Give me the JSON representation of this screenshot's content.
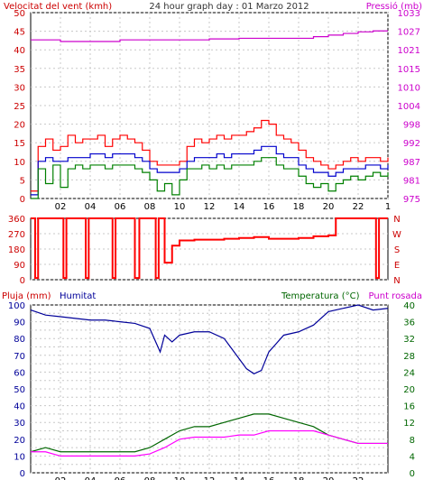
{
  "header": {
    "wind_title": "Velocitat del vent (kmh)",
    "center_title": "24 hour graph day : 01 Marzo 2012",
    "pressure_title": "Pressió (mb)"
  },
  "colors": {
    "wind_gust": "#ff0000",
    "wind_avg": "#0000cc",
    "wind_low": "#008000",
    "pressure": "#cc00cc",
    "direction": "#ff0000",
    "humidity": "#000099",
    "temperature": "#006600",
    "dewpoint": "#ff00ff",
    "axis_red": "#cc0000",
    "axis_magenta": "#cc00cc",
    "axis_green": "#006600",
    "axis_blue": "#000099",
    "grid": "#c8c8c8"
  },
  "chart_data": [
    {
      "type": "line",
      "name": "wind-pressure",
      "ylim": [
        0,
        50
      ],
      "y_ticks": [
        0,
        5,
        10,
        15,
        20,
        25,
        30,
        35,
        40,
        45,
        50
      ],
      "y2lim": [
        975,
        1033
      ],
      "y2_ticks": [
        975,
        981,
        987,
        992,
        998,
        1004,
        1010,
        1015,
        1021,
        1027,
        1033
      ],
      "x_ticks": [
        "02",
        "04",
        "06",
        "08",
        "10",
        "12",
        "14",
        "16",
        "18",
        "20",
        "22",
        "1"
      ],
      "series": [
        {
          "key": "gust",
          "x": [
            0,
            0.5,
            1,
            1.5,
            2,
            2.5,
            3,
            3.5,
            4,
            4.5,
            5,
            5.5,
            6,
            6.5,
            7,
            7.5,
            8,
            8.5,
            9,
            9.5,
            10,
            10.5,
            11,
            11.5,
            12,
            12.5,
            13,
            13.5,
            14,
            14.5,
            15,
            15.5,
            16,
            16.5,
            17,
            17.5,
            18,
            18.5,
            19,
            19.5,
            20,
            20.5,
            21,
            21.5,
            22,
            22.5,
            23,
            23.5,
            24
          ],
          "values": [
            2,
            14,
            16,
            13,
            14,
            17,
            15,
            16,
            16,
            17,
            14,
            16,
            17,
            16,
            15,
            13,
            10,
            9,
            9,
            9,
            10,
            14,
            16,
            15,
            16,
            17,
            16,
            17,
            17,
            18,
            19,
            21,
            20,
            17,
            16,
            15,
            13,
            11,
            10,
            9,
            8,
            9,
            10,
            11,
            10,
            11,
            11,
            10,
            11
          ]
        },
        {
          "key": "avg",
          "x": [
            0,
            0.5,
            1,
            1.5,
            2,
            2.5,
            3,
            3.5,
            4,
            4.5,
            5,
            5.5,
            6,
            6.5,
            7,
            7.5,
            8,
            8.5,
            9,
            9.5,
            10,
            10.5,
            11,
            11.5,
            12,
            12.5,
            13,
            13.5,
            14,
            14.5,
            15,
            15.5,
            16,
            16.5,
            17,
            17.5,
            18,
            18.5,
            19,
            19.5,
            20,
            20.5,
            21,
            21.5,
            22,
            22.5,
            23,
            23.5,
            24
          ],
          "values": [
            1,
            10,
            11,
            10,
            10,
            11,
            11,
            11,
            12,
            12,
            11,
            12,
            12,
            12,
            11,
            10,
            8,
            7,
            7,
            7,
            8,
            10,
            11,
            11,
            11,
            12,
            11,
            12,
            12,
            12,
            13,
            14,
            14,
            12,
            11,
            11,
            9,
            8,
            7,
            7,
            6,
            7,
            8,
            8,
            8,
            9,
            9,
            8,
            9
          ]
        },
        {
          "key": "low",
          "x": [
            0,
            0.5,
            1,
            1.5,
            2,
            2.5,
            3,
            3.5,
            4,
            4.5,
            5,
            5.5,
            6,
            6.5,
            7,
            7.5,
            8,
            8.5,
            9,
            9.5,
            10,
            10.5,
            11,
            11.5,
            12,
            12.5,
            13,
            13.5,
            14,
            14.5,
            15,
            15.5,
            16,
            16.5,
            17,
            17.5,
            18,
            18.5,
            19,
            19.5,
            20,
            20.5,
            21,
            21.5,
            22,
            22.5,
            23,
            23.5,
            24
          ],
          "values": [
            0,
            8,
            4,
            9,
            3,
            8,
            9,
            8,
            9,
            9,
            8,
            9,
            9,
            9,
            8,
            7,
            5,
            2,
            4,
            1,
            5,
            8,
            8,
            9,
            8,
            9,
            8,
            9,
            9,
            9,
            10,
            11,
            11,
            9,
            8,
            8,
            6,
            4,
            3,
            4,
            2,
            4,
            5,
            6,
            5,
            6,
            7,
            6,
            7
          ]
        },
        {
          "key": "pressure",
          "axis": "right",
          "x": [
            0,
            2,
            4,
            6,
            8,
            9,
            10,
            12,
            14,
            16,
            18,
            19,
            20,
            21,
            22,
            23,
            24
          ],
          "values": [
            1024.5,
            1024,
            1024,
            1024.5,
            1024.5,
            1024.5,
            1024.5,
            1024.8,
            1025,
            1025,
            1025,
            1025.5,
            1026,
            1026.5,
            1027,
            1027.3,
            1027.3
          ]
        }
      ]
    },
    {
      "type": "line",
      "name": "wind-direction",
      "ylim": [
        0,
        360
      ],
      "y_ticks": [
        0,
        90,
        180,
        270,
        360
      ],
      "y_tick_labels": [
        "0",
        "90",
        "180",
        "270",
        "360"
      ],
      "y2_tick_labels": [
        "N",
        "E",
        "S",
        "W",
        "N"
      ],
      "x": [
        0,
        0.3,
        0.5,
        2.2,
        2.4,
        3.7,
        3.9,
        5.5,
        5.7,
        7,
        7.3,
        8.4,
        8.6,
        9,
        9.5,
        10,
        11,
        12,
        13,
        14,
        15,
        16,
        17,
        18,
        19,
        20,
        20.5,
        22,
        23.2,
        23.4,
        24
      ],
      "values": [
        360,
        10,
        360,
        10,
        360,
        10,
        360,
        10,
        360,
        10,
        360,
        10,
        360,
        100,
        200,
        230,
        235,
        235,
        240,
        245,
        250,
        240,
        240,
        245,
        255,
        260,
        360,
        360,
        10,
        360,
        360
      ]
    },
    {
      "type": "line",
      "name": "humidity-temperature",
      "y_left_title": "Pluja (mm)",
      "y_left2_title": "Humitat",
      "y_right_title": "Temperatura (°C)",
      "y_right2_title": "Punt rosada",
      "ylim": [
        0,
        40
      ],
      "y_ticks": [
        0,
        2,
        4,
        6,
        8,
        10,
        12,
        14,
        16,
        18,
        20,
        22,
        24,
        26,
        28,
        30,
        32,
        34,
        36,
        38,
        40
      ],
      "y_tick_labels": [
        "0",
        "10",
        "20",
        "30",
        "40",
        "50",
        "60",
        "70",
        "80",
        "90",
        "100"
      ],
      "y_label_ticks": [
        0,
        4,
        8,
        12,
        16,
        20,
        24,
        28,
        32,
        36,
        40
      ],
      "y_right_labels": [
        "0",
        "4",
        "8",
        "12",
        "16",
        "20",
        "24",
        "28",
        "32",
        "36",
        "40"
      ],
      "x_ticks": [
        "02",
        "04",
        "06",
        "08",
        "10",
        "12",
        "14",
        "16",
        "18",
        "20",
        "22"
      ],
      "series": [
        {
          "key": "humidity",
          "x": [
            0,
            1,
            2,
            3,
            4,
            5,
            6,
            7,
            8,
            8.7,
            9,
            9.5,
            10,
            11,
            12,
            13,
            14,
            14.5,
            15,
            15.5,
            16,
            17,
            18,
            19,
            20,
            21,
            22,
            23,
            24
          ],
          "values": [
            97,
            94,
            93,
            92,
            91,
            91,
            90,
            89,
            86,
            72,
            82,
            78,
            82,
            84,
            84,
            80,
            68,
            62,
            59,
            61,
            72,
            82,
            84,
            88,
            96,
            98,
            100,
            97,
            98
          ]
        },
        {
          "key": "temperature",
          "x": [
            0,
            1,
            2,
            3,
            4,
            5,
            6,
            7,
            8,
            9,
            10,
            11,
            12,
            13,
            14,
            15,
            16,
            17,
            18,
            19,
            20,
            21,
            22,
            23,
            24
          ],
          "values": [
            5,
            6,
            5,
            5,
            5,
            5,
            5,
            5,
            6,
            8,
            10,
            11,
            11,
            12,
            13,
            14,
            14,
            13,
            12,
            11,
            9,
            8,
            7,
            7,
            7
          ]
        },
        {
          "key": "dewpoint",
          "x": [
            0,
            1,
            2,
            3,
            4,
            5,
            6,
            7,
            8,
            9,
            10,
            11,
            12,
            13,
            14,
            15,
            16,
            17,
            18,
            19,
            20,
            21,
            22,
            23,
            24
          ],
          "values": [
            5,
            5,
            4,
            4,
            4,
            4,
            4,
            4,
            4.5,
            6,
            8,
            8.5,
            8.5,
            8.5,
            9,
            9,
            10,
            10,
            10,
            10,
            9,
            8,
            7,
            7,
            7
          ]
        }
      ]
    }
  ]
}
